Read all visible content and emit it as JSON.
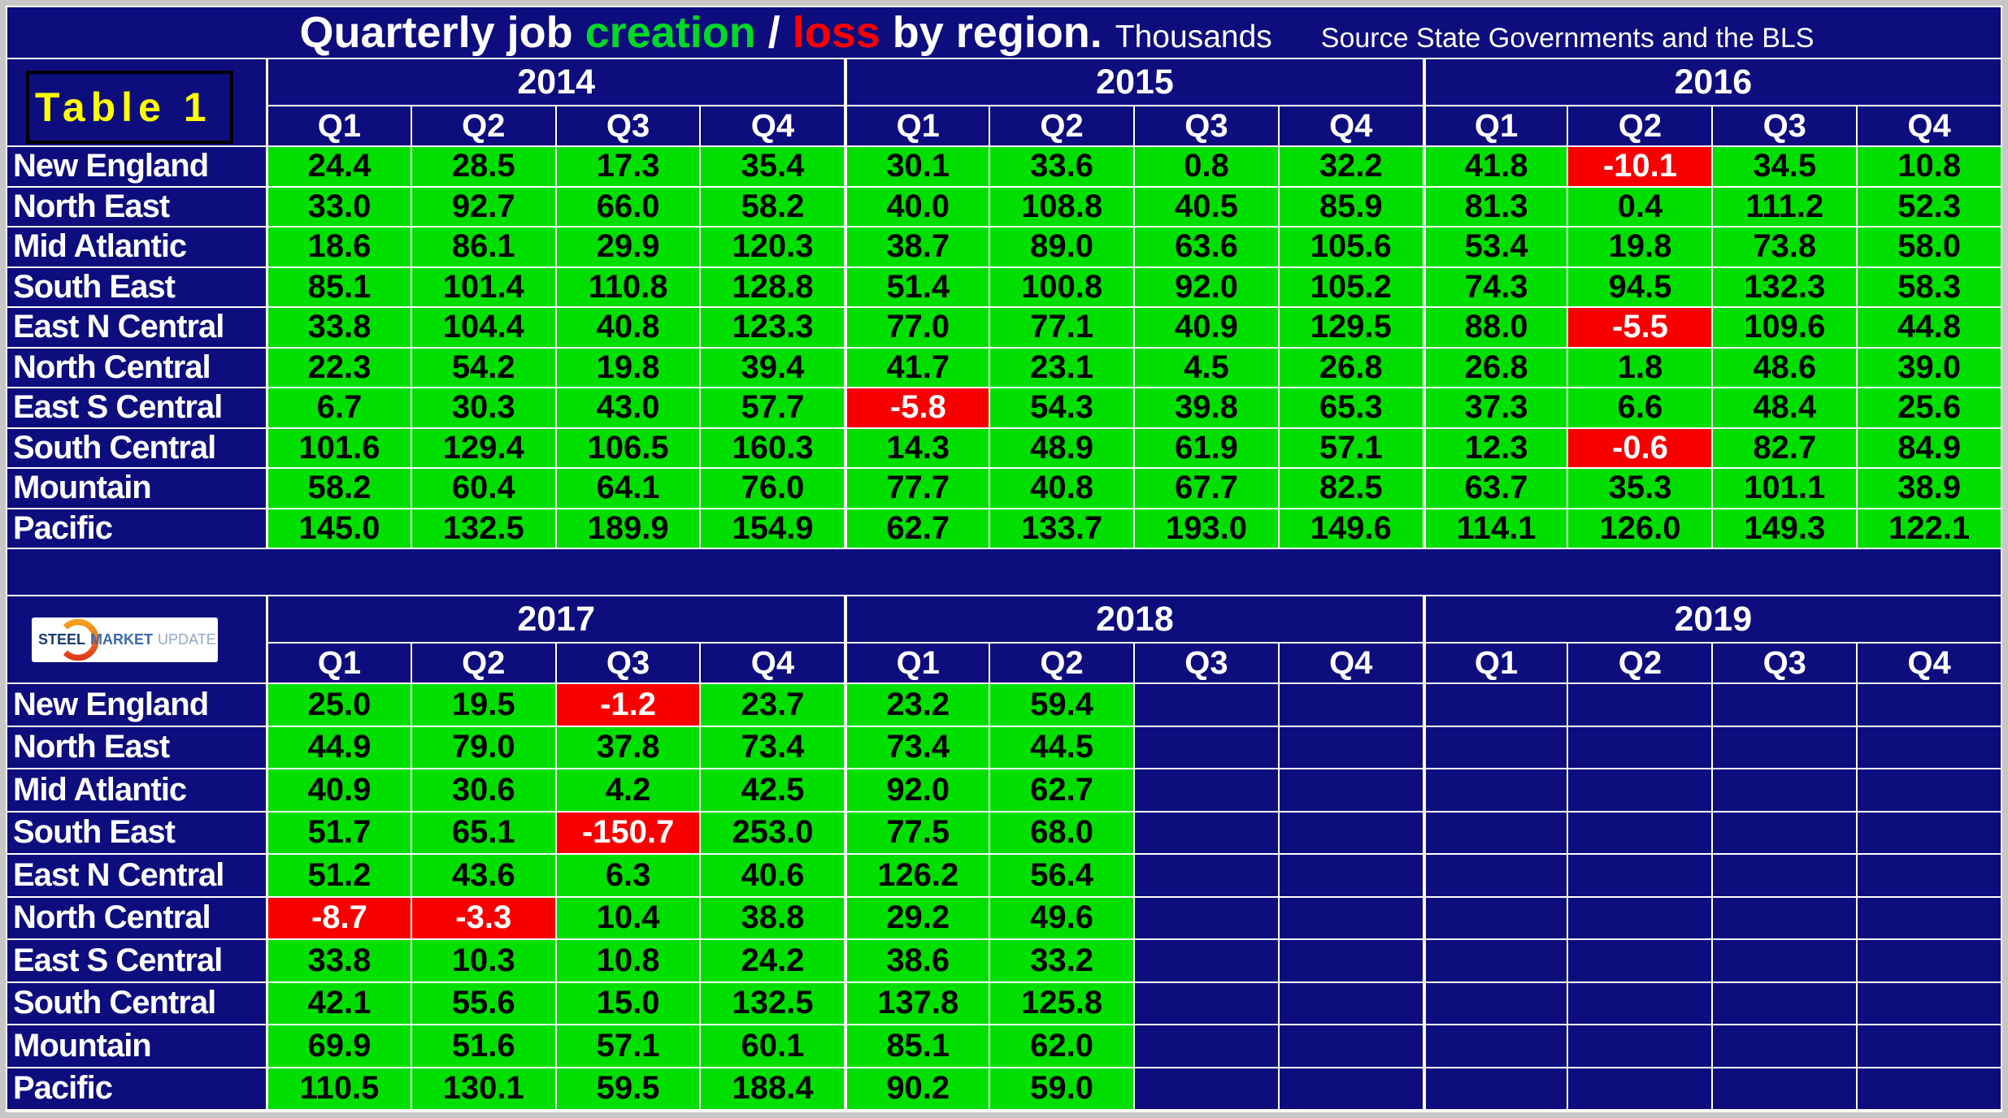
{
  "title": {
    "prefix": "Quarterly job",
    "creation": "creation",
    "separator": "/",
    "loss": "loss",
    "suffix": "by region.",
    "units": "Thousands",
    "source": "Source State Governments and the BLS"
  },
  "table_label": "Table 1",
  "logo": {
    "word1": "STEEL",
    "word2": "MARKET",
    "word3": "UPDATE"
  },
  "colors": {
    "navy": "#0d0d7e",
    "green": "#00df00",
    "red": "#f80000",
    "yellow": "#ffff00",
    "grid_line": "#ffffff",
    "frame_gray": "#c7c7c7",
    "title_creation_green": "#00d926",
    "title_loss_red": "#ff0000"
  },
  "chart_data": {
    "type": "table",
    "title": "Quarterly job creation / loss by region. Thousands",
    "source": "Source State Governments and the BLS",
    "regions": [
      "New England",
      "North East",
      "Mid Atlantic",
      "South East",
      "East N Central",
      "North Central",
      "East S Central",
      "South Central",
      "Mountain",
      "Pacific"
    ],
    "tables": [
      {
        "years": [
          "2014",
          "2015",
          "2016"
        ],
        "quarters": [
          "Q1",
          "Q2",
          "Q3",
          "Q4"
        ],
        "rows": [
          {
            "region": "New England",
            "values": [
              24.4,
              28.5,
              17.3,
              35.4,
              30.1,
              33.6,
              0.8,
              32.2,
              41.8,
              -10.1,
              34.5,
              10.8
            ]
          },
          {
            "region": "North East",
            "values": [
              33.0,
              92.7,
              66.0,
              58.2,
              40.0,
              108.8,
              40.5,
              85.9,
              81.3,
              0.4,
              111.2,
              52.3
            ]
          },
          {
            "region": "Mid Atlantic",
            "values": [
              18.6,
              86.1,
              29.9,
              120.3,
              38.7,
              89.0,
              63.6,
              105.6,
              53.4,
              19.8,
              73.8,
              58.0
            ]
          },
          {
            "region": "South East",
            "values": [
              85.1,
              101.4,
              110.8,
              128.8,
              51.4,
              100.8,
              92.0,
              105.2,
              74.3,
              94.5,
              132.3,
              58.3
            ]
          },
          {
            "region": "East N Central",
            "values": [
              33.8,
              104.4,
              40.8,
              123.3,
              77.0,
              77.1,
              40.9,
              129.5,
              88.0,
              -5.5,
              109.6,
              44.8
            ]
          },
          {
            "region": "North Central",
            "values": [
              22.3,
              54.2,
              19.8,
              39.4,
              41.7,
              23.1,
              4.5,
              26.8,
              26.8,
              1.8,
              48.6,
              39.0
            ]
          },
          {
            "region": "East S Central",
            "values": [
              6.7,
              30.3,
              43.0,
              57.7,
              -5.8,
              54.3,
              39.8,
              65.3,
              37.3,
              6.6,
              48.4,
              25.6
            ]
          },
          {
            "region": "South Central",
            "values": [
              101.6,
              129.4,
              106.5,
              160.3,
              14.3,
              48.9,
              61.9,
              57.1,
              12.3,
              -0.6,
              82.7,
              84.9
            ]
          },
          {
            "region": "Mountain",
            "values": [
              58.2,
              60.4,
              64.1,
              76.0,
              77.7,
              40.8,
              67.7,
              82.5,
              63.7,
              35.3,
              101.1,
              38.9
            ]
          },
          {
            "region": "Pacific",
            "values": [
              145.0,
              132.5,
              189.9,
              154.9,
              62.7,
              133.7,
              193.0,
              149.6,
              114.1,
              126.0,
              149.3,
              122.1
            ]
          }
        ]
      },
      {
        "years": [
          "2017",
          "2018",
          "2019"
        ],
        "quarters": [
          "Q1",
          "Q2",
          "Q3",
          "Q4"
        ],
        "rows": [
          {
            "region": "New England",
            "values": [
              25.0,
              19.5,
              -1.2,
              23.7,
              23.2,
              59.4,
              null,
              null,
              null,
              null,
              null,
              null
            ]
          },
          {
            "region": "North East",
            "values": [
              44.9,
              79.0,
              37.8,
              73.4,
              73.4,
              44.5,
              null,
              null,
              null,
              null,
              null,
              null
            ]
          },
          {
            "region": "Mid Atlantic",
            "values": [
              40.9,
              30.6,
              4.2,
              42.5,
              92.0,
              62.7,
              null,
              null,
              null,
              null,
              null,
              null
            ]
          },
          {
            "region": "South East",
            "values": [
              51.7,
              65.1,
              -150.7,
              253.0,
              77.5,
              68.0,
              null,
              null,
              null,
              null,
              null,
              null
            ]
          },
          {
            "region": "East N Central",
            "values": [
              51.2,
              43.6,
              6.3,
              40.6,
              126.2,
              56.4,
              null,
              null,
              null,
              null,
              null,
              null
            ]
          },
          {
            "region": "North Central",
            "values": [
              -8.7,
              -3.3,
              10.4,
              38.8,
              29.2,
              49.6,
              null,
              null,
              null,
              null,
              null,
              null
            ]
          },
          {
            "region": "East S Central",
            "values": [
              33.8,
              10.3,
              10.8,
              24.2,
              38.6,
              33.2,
              null,
              null,
              null,
              null,
              null,
              null
            ]
          },
          {
            "region": "South Central",
            "values": [
              42.1,
              55.6,
              15.0,
              132.5,
              137.8,
              125.8,
              null,
              null,
              null,
              null,
              null,
              null
            ]
          },
          {
            "region": "Mountain",
            "values": [
              69.9,
              51.6,
              57.1,
              60.1,
              85.1,
              62.0,
              null,
              null,
              null,
              null,
              null,
              null
            ]
          },
          {
            "region": "Pacific",
            "values": [
              110.5,
              130.1,
              59.5,
              188.4,
              90.2,
              59.0,
              null,
              null,
              null,
              null,
              null,
              null
            ]
          }
        ]
      }
    ]
  }
}
